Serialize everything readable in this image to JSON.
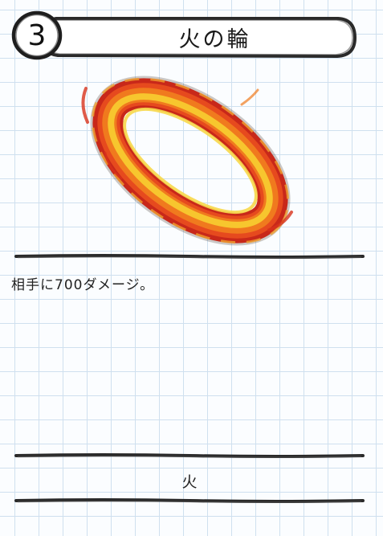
{
  "card": {
    "cost": "3",
    "title": "火の輪",
    "artwork_icon": "fire-ring-icon",
    "effect": "相手に700ダメージ。",
    "element": "火"
  },
  "colors": {
    "grid": "#cfe0ef",
    "background": "#fbfdff",
    "pencil": "#2a2a2a",
    "fire_red": "#d8321c",
    "fire_orange": "#f07a1e",
    "fire_yellow": "#f7c62e"
  }
}
